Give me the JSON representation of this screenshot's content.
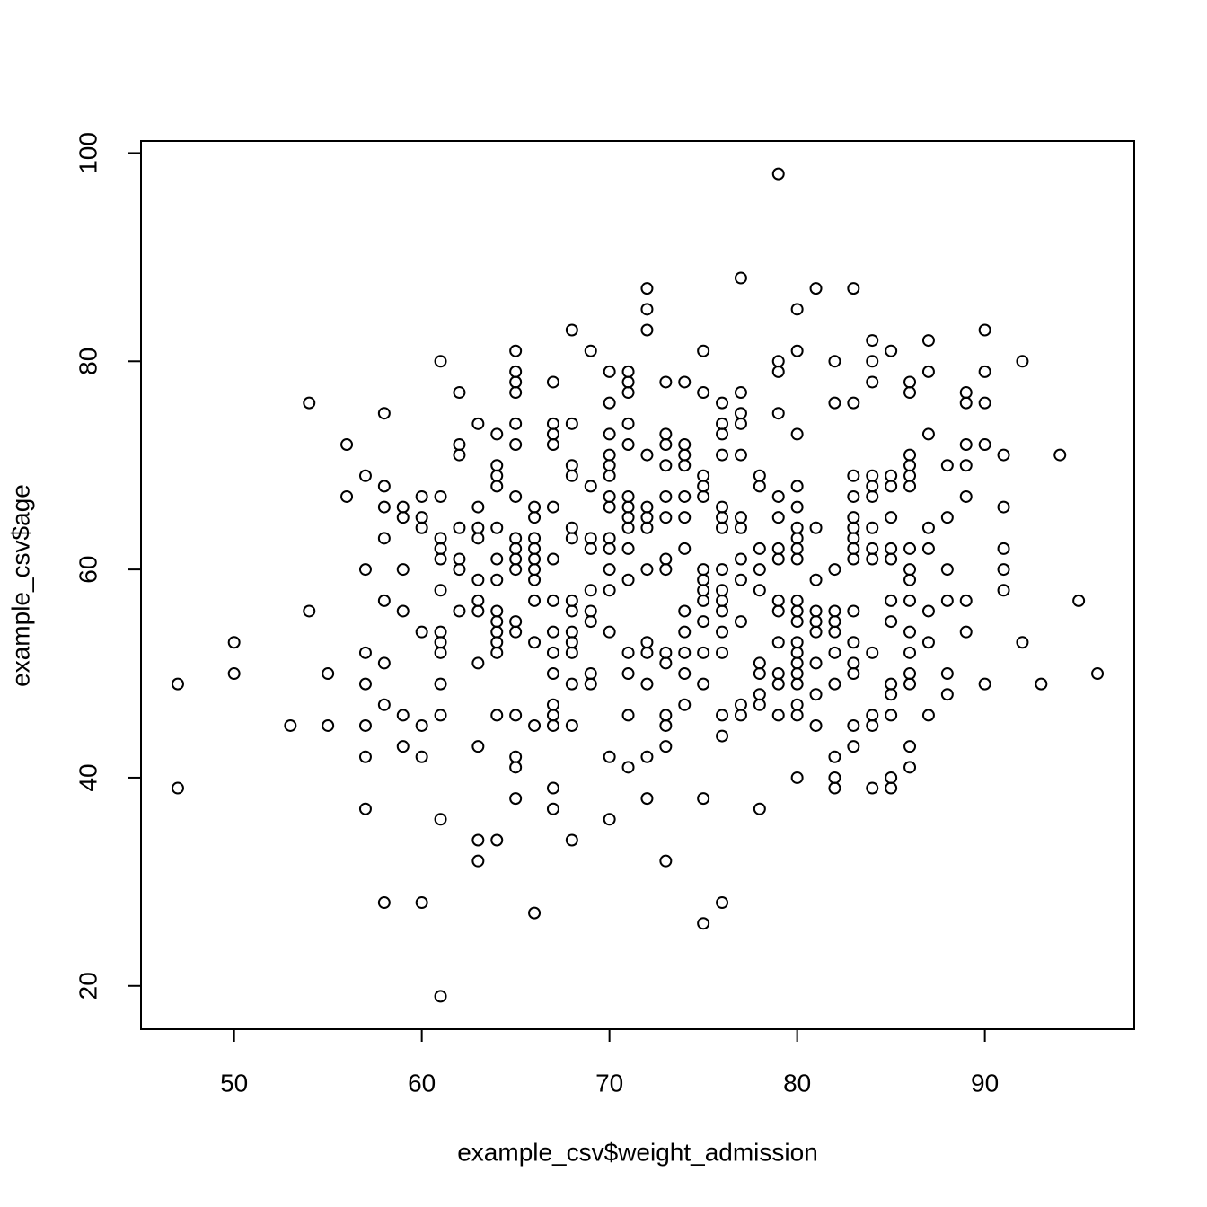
{
  "chart_data": {
    "type": "scatter",
    "x_label": "example_csv$weight_admission",
    "y_label": "example_csv$age",
    "xlim": [
      45.04,
      97.96
    ],
    "ylim": [
      15.84,
      101.16
    ],
    "xticks": [
      50,
      60,
      70,
      80,
      90
    ],
    "yticks": [
      20,
      40,
      60,
      80,
      100
    ],
    "color": "#000000",
    "x": [
      47,
      47,
      50,
      50,
      53,
      54,
      54,
      55,
      55,
      56,
      56,
      57,
      57,
      57,
      57,
      57,
      57,
      57,
      58,
      58,
      58,
      58,
      58,
      58,
      58,
      58,
      59,
      59,
      59,
      59,
      59,
      59,
      60,
      60,
      60,
      60,
      60,
      60,
      60,
      61,
      61,
      61,
      61,
      61,
      61,
      61,
      61,
      61,
      61,
      61,
      61,
      61,
      62,
      62,
      62,
      62,
      62,
      62,
      62,
      63,
      63,
      63,
      63,
      63,
      63,
      63,
      63,
      63,
      63,
      63,
      64,
      64,
      64,
      64,
      64,
      64,
      64,
      64,
      64,
      64,
      64,
      64,
      64,
      64,
      65,
      65,
      65,
      65,
      65,
      65,
      65,
      65,
      65,
      65,
      65,
      65,
      65,
      65,
      65,
      65,
      65,
      66,
      66,
      66,
      66,
      66,
      66,
      66,
      66,
      66,
      66,
      66,
      67,
      67,
      67,
      67,
      67,
      67,
      67,
      67,
      67,
      67,
      67,
      67,
      67,
      67,
      67,
      68,
      68,
      68,
      68,
      68,
      68,
      68,
      68,
      68,
      68,
      68,
      68,
      68,
      68,
      69,
      69,
      69,
      69,
      69,
      69,
      69,
      69,
      69,
      70,
      70,
      70,
      70,
      70,
      70,
      70,
      70,
      70,
      70,
      70,
      70,
      70,
      70,
      70,
      71,
      71,
      71,
      71,
      71,
      71,
      71,
      71,
      71,
      71,
      71,
      71,
      71,
      71,
      71,
      72,
      72,
      72,
      72,
      72,
      72,
      72,
      72,
      72,
      72,
      72,
      72,
      72,
      73,
      73,
      73,
      73,
      73,
      73,
      73,
      73,
      73,
      73,
      73,
      73,
      73,
      73,
      74,
      74,
      74,
      74,
      74,
      74,
      74,
      74,
      74,
      74,
      74,
      74,
      75,
      75,
      75,
      75,
      75,
      75,
      75,
      75,
      75,
      75,
      75,
      75,
      75,
      75,
      76,
      76,
      76,
      76,
      76,
      76,
      76,
      76,
      76,
      76,
      76,
      76,
      76,
      76,
      76,
      76,
      77,
      77,
      77,
      77,
      77,
      77,
      77,
      77,
      77,
      77,
      77,
      77,
      78,
      78,
      78,
      78,
      78,
      78,
      78,
      78,
      78,
      78,
      79,
      79,
      79,
      79,
      79,
      79,
      79,
      79,
      79,
      79,
      79,
      79,
      79,
      79,
      80,
      80,
      80,
      80,
      80,
      80,
      80,
      80,
      80,
      80,
      80,
      80,
      80,
      80,
      80,
      80,
      80,
      80,
      80,
      80,
      81,
      81,
      81,
      81,
      81,
      81,
      81,
      81,
      81,
      82,
      82,
      82,
      82,
      82,
      82,
      82,
      82,
      82,
      82,
      82,
      83,
      83,
      83,
      83,
      83,
      83,
      83,
      83,
      83,
      83,
      83,
      83,
      83,
      83,
      83,
      84,
      84,
      84,
      84,
      84,
      84,
      84,
      84,
      84,
      84,
      84,
      84,
      84,
      85,
      85,
      85,
      85,
      85,
      85,
      85,
      85,
      85,
      85,
      85,
      85,
      85,
      86,
      86,
      86,
      86,
      86,
      86,
      86,
      86,
      86,
      86,
      86,
      86,
      86,
      86,
      86,
      86,
      87,
      87,
      87,
      87,
      87,
      87,
      87,
      87,
      88,
      88,
      88,
      88,
      88,
      88,
      89,
      89,
      89,
      89,
      89,
      89,
      89,
      90,
      90,
      90,
      90,
      90,
      91,
      91,
      91,
      91,
      91,
      92,
      92,
      93,
      94,
      95,
      96
    ],
    "values": [
      49,
      39,
      53,
      50,
      45,
      76,
      56,
      50,
      45,
      72,
      67,
      69,
      60,
      52,
      49,
      45,
      42,
      37,
      75,
      68,
      66,
      63,
      57,
      51,
      47,
      28,
      66,
      65,
      60,
      56,
      46,
      43,
      67,
      65,
      64,
      54,
      45,
      42,
      28,
      80,
      67,
      63,
      62,
      61,
      58,
      54,
      53,
      52,
      49,
      46,
      36,
      19,
      77,
      72,
      71,
      64,
      61,
      60,
      56,
      74,
      66,
      64,
      63,
      59,
      57,
      56,
      51,
      43,
      34,
      32,
      73,
      70,
      69,
      68,
      64,
      61,
      59,
      56,
      55,
      54,
      53,
      52,
      46,
      34,
      81,
      79,
      78,
      77,
      74,
      72,
      67,
      63,
      62,
      61,
      60,
      55,
      54,
      46,
      42,
      41,
      38,
      66,
      65,
      63,
      62,
      61,
      60,
      59,
      57,
      53,
      45,
      27,
      78,
      74,
      73,
      72,
      66,
      61,
      57,
      54,
      52,
      50,
      47,
      46,
      45,
      39,
      37,
      83,
      74,
      70,
      69,
      64,
      63,
      57,
      56,
      54,
      53,
      52,
      49,
      45,
      34,
      81,
      68,
      63,
      62,
      58,
      56,
      55,
      50,
      49,
      79,
      76,
      73,
      71,
      70,
      69,
      67,
      66,
      63,
      62,
      60,
      58,
      54,
      42,
      36,
      79,
      78,
      77,
      74,
      72,
      67,
      66,
      65,
      64,
      62,
      59,
      52,
      50,
      46,
      41,
      87,
      85,
      83,
      71,
      66,
      65,
      64,
      60,
      53,
      52,
      49,
      42,
      38,
      78,
      73,
      72,
      70,
      67,
      65,
      61,
      60,
      52,
      51,
      46,
      45,
      43,
      32,
      78,
      72,
      71,
      70,
      67,
      65,
      62,
      56,
      54,
      52,
      50,
      47,
      81,
      77,
      69,
      68,
      67,
      60,
      59,
      58,
      57,
      55,
      52,
      49,
      38,
      26,
      76,
      74,
      73,
      71,
      66,
      65,
      64,
      60,
      58,
      57,
      56,
      54,
      52,
      46,
      44,
      28,
      88,
      77,
      75,
      74,
      71,
      65,
      64,
      61,
      59,
      55,
      47,
      46,
      69,
      68,
      62,
      60,
      58,
      51,
      50,
      48,
      47,
      37,
      98,
      80,
      79,
      75,
      67,
      65,
      62,
      61,
      57,
      56,
      53,
      50,
      49,
      46,
      85,
      81,
      73,
      68,
      66,
      64,
      63,
      62,
      61,
      57,
      56,
      55,
      53,
      52,
      51,
      50,
      49,
      47,
      46,
      40,
      87,
      64,
      59,
      56,
      55,
      54,
      51,
      48,
      45,
      80,
      76,
      60,
      56,
      55,
      54,
      52,
      49,
      42,
      40,
      39,
      87,
      76,
      69,
      67,
      65,
      64,
      63,
      62,
      61,
      56,
      53,
      51,
      50,
      45,
      43,
      82,
      80,
      78,
      69,
      68,
      67,
      64,
      62,
      61,
      52,
      46,
      45,
      39,
      81,
      69,
      68,
      65,
      62,
      61,
      57,
      55,
      49,
      48,
      46,
      40,
      39,
      78,
      77,
      71,
      70,
      69,
      68,
      62,
      60,
      59,
      57,
      54,
      52,
      50,
      49,
      43,
      41,
      82,
      79,
      73,
      64,
      62,
      56,
      53,
      46,
      70,
      65,
      60,
      57,
      50,
      48,
      77,
      76,
      72,
      70,
      67,
      57,
      54,
      83,
      79,
      76,
      72,
      49,
      71,
      66,
      62,
      60,
      58,
      80,
      53,
      49,
      71,
      57,
      50
    ]
  }
}
